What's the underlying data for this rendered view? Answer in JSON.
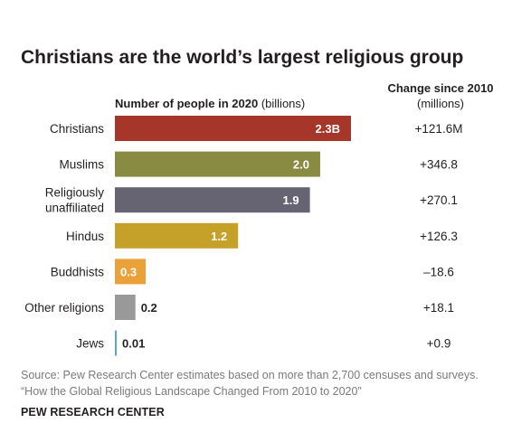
{
  "chart_data": {
    "type": "bar",
    "orientation": "horizontal",
    "title": "Christians are the world’s largest religious group",
    "value_header_bold": "Number of people in 2020",
    "value_header_unit": "(billions)",
    "change_header_bold": "Change since 2010",
    "change_header_unit": "(millions)",
    "categories": [
      "Christians",
      "Muslims",
      "Religiously unaffiliated",
      "Hindus",
      "Buddhists",
      "Other religions",
      "Jews"
    ],
    "category_lines": [
      [
        "Christians"
      ],
      [
        "Muslims"
      ],
      [
        "Religiously",
        "unaffiliated"
      ],
      [
        "Hindus"
      ],
      [
        "Buddhists"
      ],
      [
        "Other religions"
      ],
      [
        "Jews"
      ]
    ],
    "values": [
      2.3,
      2.0,
      1.9,
      1.2,
      0.3,
      0.2,
      0.01
    ],
    "value_labels": [
      "2.3B",
      "2.0",
      "1.9",
      "1.2",
      "0.3",
      "0.2",
      "0.01"
    ],
    "label_inside": [
      true,
      true,
      true,
      true,
      true,
      false,
      false
    ],
    "colors": [
      "#a6362a",
      "#8a8b42",
      "#666373",
      "#c5a12a",
      "#eba13a",
      "#999999",
      "#5ba7c8"
    ],
    "change_since_2010": [
      "+121.6M",
      "+346.8",
      "+270.1",
      "+126.3",
      "–18.6",
      "+18.1",
      "+0.9"
    ],
    "xlim": [
      0,
      2.3
    ]
  },
  "source": {
    "line1": "Source: Pew Research Center estimates based on more than 2,700 censuses and surveys.",
    "line2": "“How the Global Religious Landscape Changed From 2010 to 2020”"
  },
  "brand": "PEW RESEARCH CENTER"
}
